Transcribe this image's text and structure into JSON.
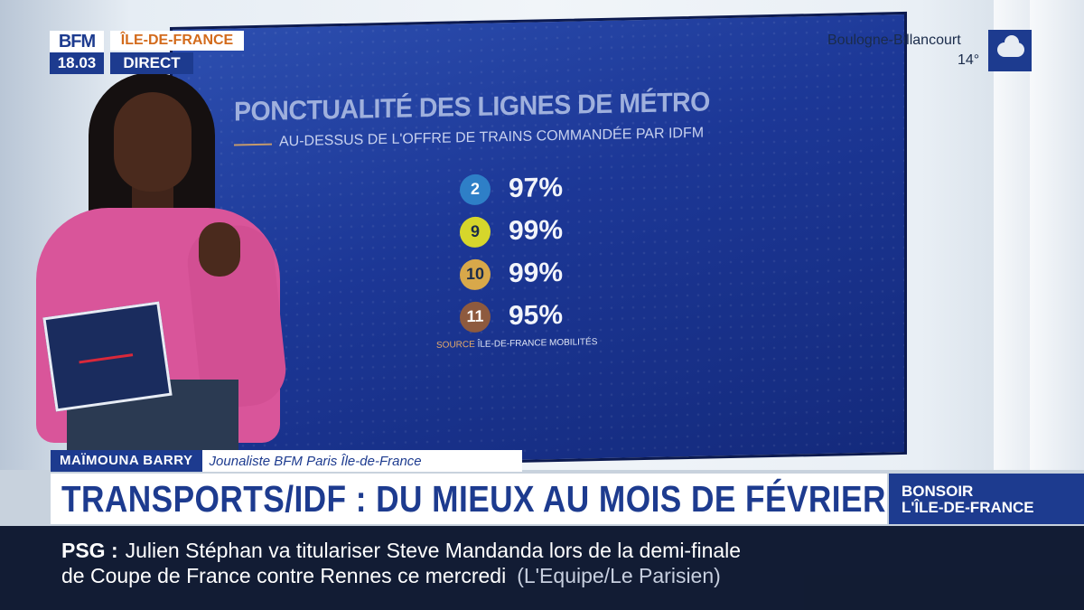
{
  "branding": {
    "logo_top": "BFM",
    "logo_time": "18.03",
    "channel": "ÎLE-DE-FRANCE",
    "live_label": "DIRECT",
    "color_primary": "#1d3b8f",
    "color_channel": "#d36b1c"
  },
  "weather": {
    "city": "Boulogne-Billancourt",
    "temperature": "14°",
    "icon": "cloud-icon"
  },
  "screen": {
    "title": "PONCTUALITÉ DES LIGNES DE MÉTRO",
    "subtitle": "AU-DESSUS DE L'OFFRE DE TRAINS COMMANDÉE PAR IDFM",
    "lines": [
      {
        "line": "2",
        "value": "97%",
        "badge_color": "#2e7fc7",
        "text_color": "#ffffff"
      },
      {
        "line": "9",
        "value": "99%",
        "badge_color": "#d6d62b",
        "text_color": "#1a2b4a"
      },
      {
        "line": "10",
        "value": "99%",
        "badge_color": "#d8a84a",
        "text_color": "#1a2b4a"
      },
      {
        "line": "11",
        "value": "95%",
        "badge_color": "#8e5a3e",
        "text_color": "#ffffff"
      }
    ],
    "source_label": "SOURCE",
    "source_value": "ÎLE-DE-FRANCE MOBILITÉS"
  },
  "lower_third": {
    "name": "MAÏMOUNA BARRY",
    "role": "Jounaliste BFM Paris Île-de-France",
    "headline": "TRANSPORTS/IDF : DU MIEUX AU MOIS DE FÉVRIER",
    "show_line1": "BONSOIR",
    "show_line2": "L'ÎLE-DE-FRANCE"
  },
  "ticker": {
    "tag": "PSG  :",
    "line1": "Julien Stéphan va titulariser Steve Mandanda lors de la demi-finale",
    "line2": "de Coupe de France contre Rennes ce mercredi",
    "source": "(L'Equipe/Le Parisien)"
  }
}
